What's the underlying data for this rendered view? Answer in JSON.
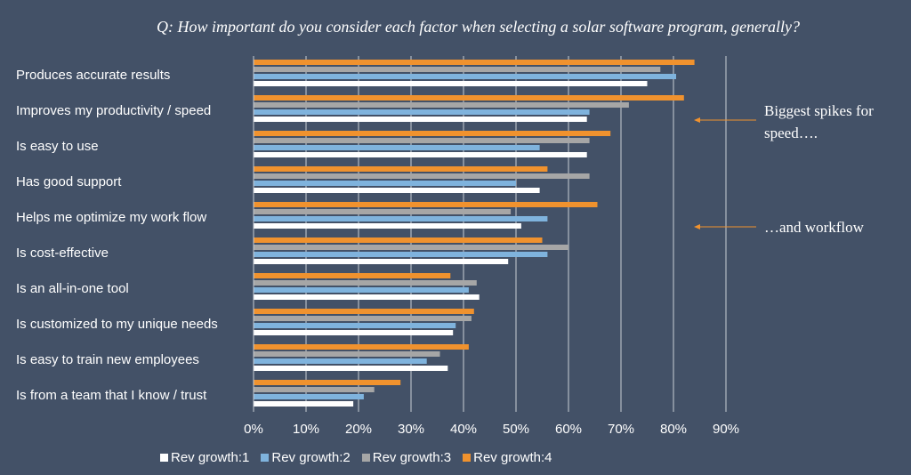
{
  "chart_data": {
    "type": "bar",
    "orientation": "horizontal",
    "title": "Q: How important do you consider each factor when selecting a solar software program, generally?",
    "categories": [
      "Produces accurate results",
      "Improves my productivity / speed",
      "Is easy to use",
      "Has good support",
      "Helps me optimize my work flow",
      "Is cost-effective",
      "Is an all-in-one tool",
      "Is customized to my unique needs",
      "Is easy to train new employees",
      "Is from a team that I know / trust"
    ],
    "series": [
      {
        "name": "Rev growth:1",
        "color": "#ffffff",
        "values": [
          75,
          63.5,
          63.5,
          54.5,
          51,
          48.5,
          43,
          38,
          37,
          19
        ]
      },
      {
        "name": "Rev growth:2",
        "color": "#7fb3dd",
        "values": [
          80.5,
          64,
          54.5,
          50,
          56,
          56,
          41,
          38.5,
          33,
          21
        ]
      },
      {
        "name": "Rev growth:3",
        "color": "#a6a6a6",
        "values": [
          77.5,
          71.5,
          64,
          64,
          49,
          60,
          42.5,
          41.5,
          35.5,
          23
        ]
      },
      {
        "name": "Rev growth:4",
        "color": "#f0922e",
        "values": [
          84,
          82,
          68,
          56,
          65.5,
          55,
          37.5,
          42,
          41,
          28
        ]
      }
    ],
    "xlim": [
      0,
      90
    ],
    "xticks": [
      0,
      10,
      20,
      30,
      40,
      50,
      60,
      70,
      80,
      90
    ],
    "tick_suffix": "%",
    "grid": true,
    "legend_position": "bottom",
    "annotations": [
      {
        "lines": [
          "Biggest spikes for",
          "speed…."
        ],
        "points_to": "Improves my productivity / speed"
      },
      {
        "lines": [
          "…and workflow"
        ],
        "points_to": "Helps me optimize my work flow"
      }
    ],
    "annotation_arrow_color": "#f0922e"
  }
}
